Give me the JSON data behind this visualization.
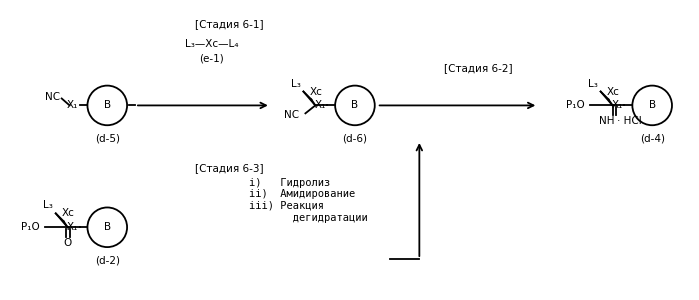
{
  "background_color": "#ffffff",
  "fig_width": 6.99,
  "fig_height": 3.0,
  "dpi": 100,
  "stage61": "[Стадия 6-1]",
  "stage62": "[Стадия 6-2]",
  "stage63": "[Стадия 6-3]",
  "reagent_line1": "L₃—Xᴄ—L₄",
  "reagent_line2": "(e-1)",
  "steps": "i)   Гидролиз\nii)  Амидирование\niii) Реакция\n     дегидратации",
  "label_d5": "(d-5)",
  "label_d6": "(d-6)",
  "label_d4": "(d-4)",
  "label_d2": "(d-2)"
}
